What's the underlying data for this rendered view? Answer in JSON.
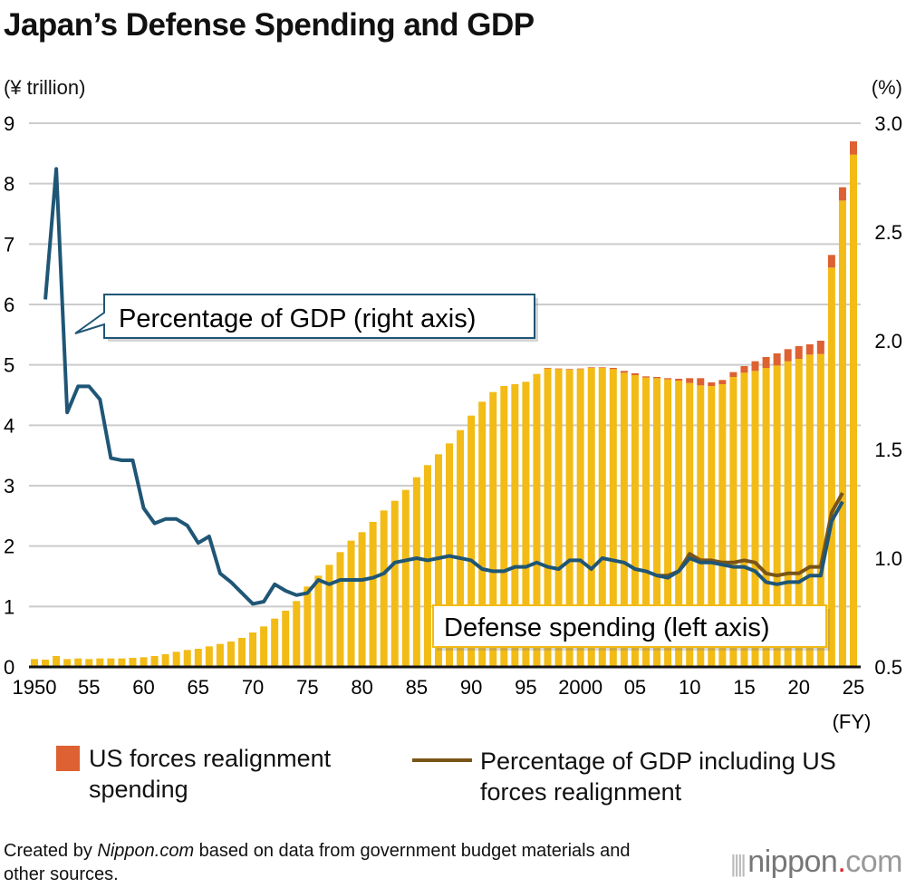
{
  "title": "Japan’s Defense Spending and GDP",
  "footer": {
    "prefix": "Created by ",
    "brand": "Nippon.com",
    "suffix": " based on data from government budget materials and other sources."
  },
  "logo": "nippon.com",
  "chart_data": {
    "type": "bar",
    "title": "Japan’s Defense Spending and GDP",
    "xlabel": "(FY)",
    "ylabel": "(¥ trillion)",
    "ylabel_right": "(%)",
    "ylim": [
      0,
      9
    ],
    "ylim_right": [
      0.5,
      3.0
    ],
    "yticks": [
      "0",
      "1",
      "2",
      "3",
      "4",
      "5",
      "6",
      "7",
      "8",
      "9"
    ],
    "yticks_right": [
      "0.5",
      "1.0",
      "1.5",
      "2.0",
      "2.5",
      "3.0"
    ],
    "xticks": [
      {
        "year": 1950,
        "label": "1950"
      },
      {
        "year": 1955,
        "label": "55"
      },
      {
        "year": 1960,
        "label": "60"
      },
      {
        "year": 1965,
        "label": "65"
      },
      {
        "year": 1970,
        "label": "70"
      },
      {
        "year": 1975,
        "label": "75"
      },
      {
        "year": 1980,
        "label": "80"
      },
      {
        "year": 1985,
        "label": "85"
      },
      {
        "year": 1990,
        "label": "90"
      },
      {
        "year": 1995,
        "label": "95"
      },
      {
        "year": 2000,
        "label": "2000"
      },
      {
        "year": 2005,
        "label": "05"
      },
      {
        "year": 2010,
        "label": "10"
      },
      {
        "year": 2015,
        "label": "15"
      },
      {
        "year": 2020,
        "label": "20"
      },
      {
        "year": 2025,
        "label": "25"
      }
    ],
    "grid": true,
    "legend_placement": "bottom",
    "colors": {
      "defense": "#f2bb16",
      "realignment": "#dd6132",
      "gdp_line": "#1f5676",
      "gdp_incl_line": "#7a5418",
      "grid": "#cccccc"
    },
    "years": [
      1950,
      1951,
      1952,
      1953,
      1954,
      1955,
      1956,
      1957,
      1958,
      1959,
      1960,
      1961,
      1962,
      1963,
      1964,
      1965,
      1966,
      1967,
      1968,
      1969,
      1970,
      1971,
      1972,
      1973,
      1974,
      1975,
      1976,
      1977,
      1978,
      1979,
      1980,
      1981,
      1982,
      1983,
      1984,
      1985,
      1986,
      1987,
      1988,
      1989,
      1990,
      1991,
      1992,
      1993,
      1994,
      1995,
      1996,
      1997,
      1998,
      1999,
      2000,
      2001,
      2002,
      2003,
      2004,
      2005,
      2006,
      2007,
      2008,
      2009,
      2010,
      2011,
      2012,
      2013,
      2014,
      2015,
      2016,
      2017,
      2018,
      2019,
      2020,
      2021,
      2022,
      2023,
      2024,
      2025
    ],
    "series": [
      {
        "name": "Defense spending (left axis)",
        "axis": "left",
        "kind": "bar",
        "values": [
          0.13,
          0.12,
          0.18,
          0.13,
          0.14,
          0.13,
          0.14,
          0.14,
          0.14,
          0.15,
          0.16,
          0.18,
          0.21,
          0.25,
          0.28,
          0.3,
          0.34,
          0.38,
          0.42,
          0.48,
          0.57,
          0.67,
          0.8,
          0.93,
          1.09,
          1.33,
          1.51,
          1.69,
          1.9,
          2.09,
          2.23,
          2.4,
          2.59,
          2.75,
          2.93,
          3.14,
          3.34,
          3.52,
          3.7,
          3.92,
          4.16,
          4.39,
          4.55,
          4.65,
          4.68,
          4.72,
          4.85,
          4.94,
          4.93,
          4.92,
          4.93,
          4.95,
          4.95,
          4.93,
          4.87,
          4.83,
          4.79,
          4.78,
          4.76,
          4.74,
          4.7,
          4.66,
          4.65,
          4.68,
          4.8,
          4.87,
          4.9,
          4.95,
          4.99,
          5.06,
          5.1,
          5.17,
          5.18,
          6.61,
          7.72,
          8.48
        ]
      },
      {
        "name": "US forces realignment spending",
        "axis": "left",
        "kind": "bar-stack",
        "values": [
          0,
          0,
          0,
          0,
          0,
          0,
          0,
          0,
          0,
          0,
          0,
          0,
          0,
          0,
          0,
          0,
          0,
          0,
          0,
          0,
          0,
          0,
          0,
          0,
          0,
          0,
          0,
          0,
          0,
          0,
          0,
          0,
          0,
          0,
          0,
          0,
          0,
          0,
          0,
          0,
          0,
          0,
          0,
          0,
          0,
          0,
          0,
          0.01,
          0.01,
          0.01,
          0.01,
          0.01,
          0.01,
          0.02,
          0.03,
          0.03,
          0.02,
          0.02,
          0.02,
          0.03,
          0.08,
          0.12,
          0.06,
          0.07,
          0.08,
          0.11,
          0.16,
          0.18,
          0.2,
          0.2,
          0.21,
          0.17,
          0.22,
          0.21,
          0.22,
          0.22
        ]
      },
      {
        "name": "Percentage of GDP (right axis)",
        "axis": "right",
        "kind": "line",
        "values": [
          null,
          2.19,
          2.79,
          1.67,
          1.79,
          1.79,
          1.73,
          1.46,
          1.45,
          1.45,
          1.23,
          1.16,
          1.18,
          1.18,
          1.15,
          1.07,
          1.1,
          0.93,
          0.89,
          0.84,
          0.79,
          0.8,
          0.88,
          0.85,
          0.83,
          0.84,
          0.9,
          0.88,
          0.9,
          0.9,
          0.9,
          0.91,
          0.93,
          0.98,
          0.99,
          1.0,
          0.99,
          1.0,
          1.01,
          1.0,
          0.99,
          0.95,
          0.94,
          0.94,
          0.96,
          0.96,
          0.98,
          0.96,
          0.95,
          0.99,
          0.99,
          0.95,
          1.0,
          0.99,
          0.98,
          0.95,
          0.94,
          0.92,
          0.91,
          0.94,
          1.0,
          0.98,
          0.98,
          0.97,
          0.96,
          0.96,
          0.94,
          0.89,
          0.88,
          0.89,
          0.89,
          0.92,
          0.92,
          1.17,
          1.26,
          null
        ]
      },
      {
        "name": "Percentage of GDP including US forces realignment",
        "axis": "right",
        "kind": "line",
        "values": [
          null,
          null,
          null,
          null,
          null,
          null,
          null,
          null,
          null,
          null,
          null,
          null,
          null,
          null,
          null,
          null,
          null,
          null,
          null,
          null,
          null,
          null,
          null,
          null,
          null,
          null,
          null,
          null,
          null,
          null,
          null,
          null,
          null,
          null,
          null,
          null,
          null,
          null,
          null,
          null,
          null,
          null,
          null,
          null,
          null,
          null,
          null,
          null,
          null,
          null,
          null,
          null,
          null,
          null,
          null,
          null,
          null,
          0.92,
          0.92,
          0.94,
          1.02,
          0.99,
          0.99,
          0.98,
          0.98,
          0.99,
          0.98,
          0.93,
          0.92,
          0.93,
          0.93,
          0.96,
          0.96,
          1.21,
          1.3,
          null
        ]
      }
    ],
    "annotations": [
      "Percentage of GDP (right axis)",
      "Defense spending (left axis)"
    ],
    "legend": [
      "US forces realignment spending",
      "Percentage of GDP including US forces realignment"
    ]
  }
}
